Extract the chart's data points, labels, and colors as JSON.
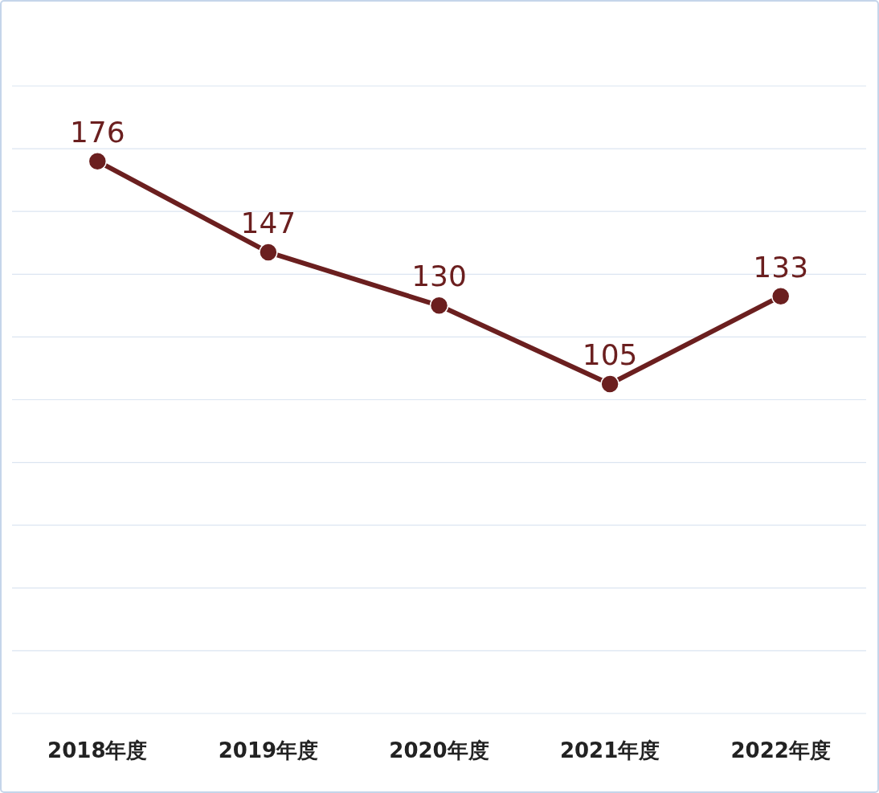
{
  "chart_data": {
    "type": "line",
    "categories": [
      "2018年度",
      "2019年度",
      "2020年度",
      "2021年度",
      "2022年度"
    ],
    "series": [
      {
        "color": "#6b1f1f",
        "values": [
          176,
          147,
          130,
          105,
          133
        ]
      }
    ],
    "ylim": [
      0,
      200
    ],
    "yticks": [
      {
        "value": 0,
        "label": null
      },
      {
        "value": 20,
        "label": null
      },
      {
        "value": 40,
        "label": null
      },
      {
        "value": 60,
        "label": null
      },
      {
        "value": 80,
        "label": null
      },
      {
        "value": 100,
        "label": null
      },
      {
        "value": 120,
        "label": null
      },
      {
        "value": 140,
        "label": null
      },
      {
        "value": 160,
        "label": null
      },
      {
        "value": 180,
        "label": null
      },
      {
        "value": 200,
        "label": null
      }
    ],
    "grid": "y",
    "tick_labels": "x",
    "data_labels": true,
    "marker": "circle",
    "line_style": "solid"
  }
}
